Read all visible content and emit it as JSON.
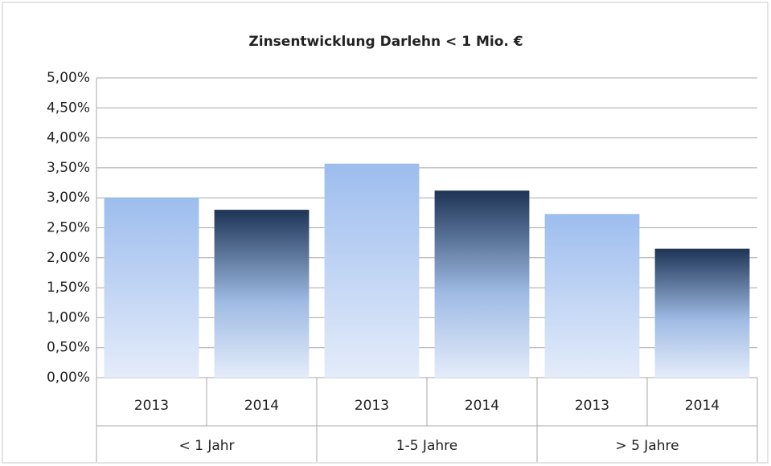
{
  "chart_data": {
    "type": "bar",
    "title": "Zinsentwicklung Darlehn < 1 Mio. €",
    "groups": [
      {
        "label": "< 1 Jahr",
        "categories": [
          "2013",
          "2014"
        ],
        "values": [
          3.0,
          2.8
        ]
      },
      {
        "label": "1-5 Jahre",
        "categories": [
          "2013",
          "2014"
        ],
        "values": [
          3.57,
          3.12
        ]
      },
      {
        "label": "> 5 Jahre",
        "categories": [
          "2013",
          "2014"
        ],
        "values": [
          2.73,
          2.15
        ]
      }
    ],
    "colors": [
      "#9dbdee",
      "#1d3455"
    ],
    "ylim": [
      0,
      5
    ],
    "yticks": [
      {
        "value": 0,
        "label": "0,00%"
      },
      {
        "value": 0.5,
        "label": "0,50%"
      },
      {
        "value": 1,
        "label": "1,00%"
      },
      {
        "value": 1.5,
        "label": "1,50%"
      },
      {
        "value": 2,
        "label": "2,00%"
      },
      {
        "value": 2.5,
        "label": "2,50%"
      },
      {
        "value": 3,
        "label": "3,00%"
      },
      {
        "value": 3.5,
        "label": "3,50%"
      },
      {
        "value": 4,
        "label": "4,00%"
      },
      {
        "value": 4.5,
        "label": "4,50%"
      },
      {
        "value": 5,
        "label": "5,00%"
      }
    ],
    "grid": true
  }
}
